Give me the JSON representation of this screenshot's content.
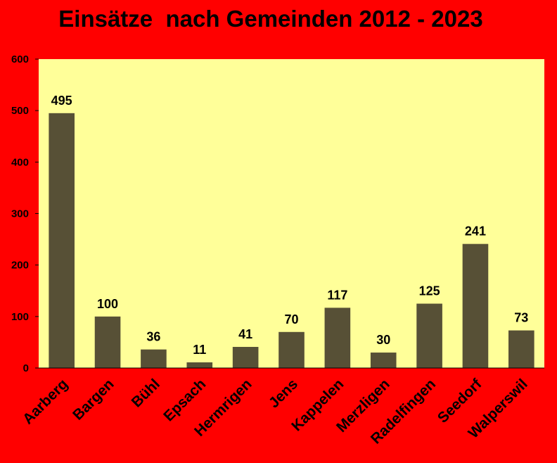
{
  "chart_data": {
    "type": "bar",
    "title": "Einsätze  nach Gemeinden 2012 - 2023",
    "xlabel": "",
    "ylabel": "",
    "categories": [
      "Aarberg",
      "Bargen",
      "Bühl",
      "Epsach",
      "Hermrigen",
      "Jens",
      "Kappelen",
      "Merzligen",
      "Radelfingen",
      "Seedorf",
      "Walperswil"
    ],
    "values": [
      495,
      100,
      36,
      11,
      41,
      70,
      117,
      30,
      125,
      241,
      73
    ],
    "ylim": [
      0,
      600
    ],
    "yticks": [
      "0",
      "100",
      "200",
      "300",
      "400",
      "500",
      "600"
    ],
    "grid": false,
    "legend": "none",
    "colors": {
      "background": "#ff0000",
      "plot_area": "#ffff99",
      "bar": "#575036",
      "label_on_bar": "#ffffff",
      "label": "#000000"
    }
  }
}
